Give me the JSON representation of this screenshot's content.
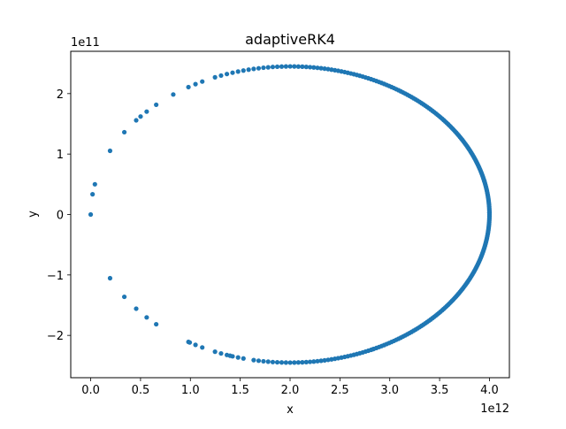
{
  "chart_data": {
    "type": "scatter",
    "title": "adaptiveRK4",
    "xlabel": "x",
    "ylabel": "y",
    "x_offset_label": "1e12",
    "y_offset_label": "1e11",
    "xlim": [
      -200000000000.0,
      4200000000000.0
    ],
    "ylim": [
      -270000000000.0,
      270000000000.0
    ],
    "x_ticks": [
      0.0,
      0.5,
      1.0,
      1.5,
      2.0,
      2.5,
      3.0,
      3.5,
      4.0
    ],
    "x_tick_labels": [
      "0.0",
      "0.5",
      "1.0",
      "1.5",
      "2.0",
      "2.5",
      "3.0",
      "3.5",
      "4.0"
    ],
    "y_ticks": [
      -2,
      -1,
      0,
      1,
      2
    ],
    "y_tick_labels": [
      "−2",
      "−1",
      "0",
      "1",
      "2"
    ],
    "grid": false,
    "marker_color": "#1f77b4",
    "series": [
      {
        "orbit": {
          "center_x": 2000000000000.0,
          "semi_major_axis": 2000000000000.0,
          "semi_minor_axis": 245000000000.0,
          "point_count": 300
        }
      }
    ]
  }
}
